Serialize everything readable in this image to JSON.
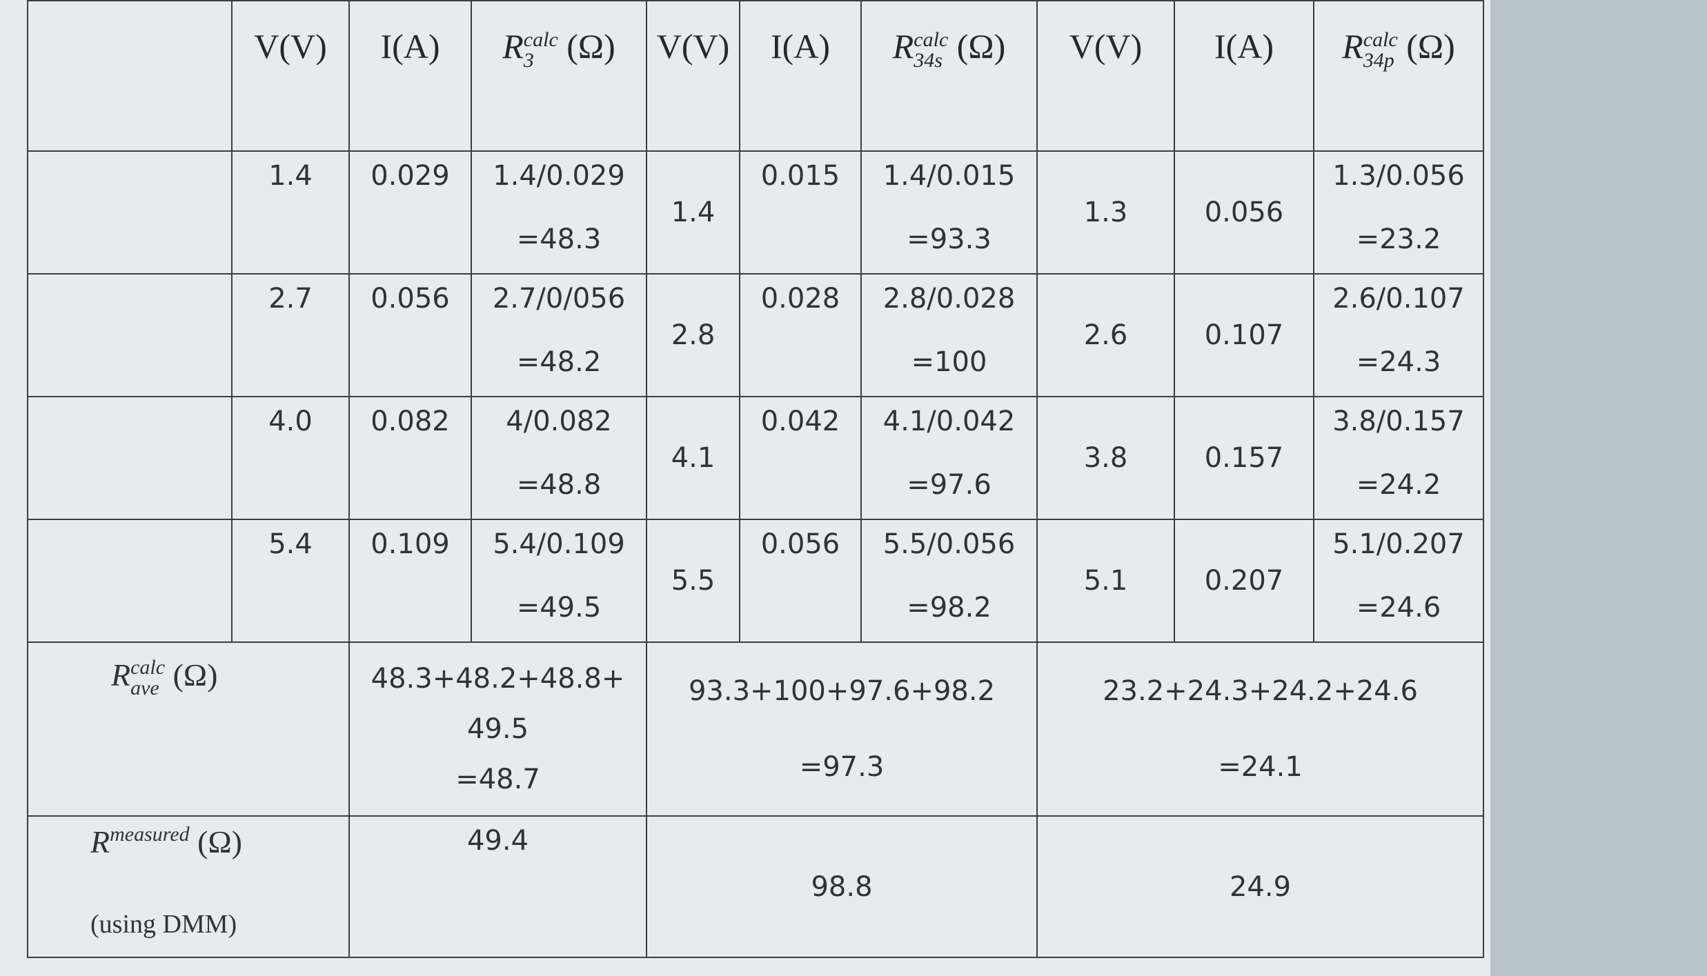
{
  "table": {
    "header": {
      "groups": [
        {
          "v": "V(V)",
          "i": "I(A)",
          "r": {
            "symbol": "R",
            "sup": "calc",
            "sub": "3",
            "unit": "(Ω)"
          }
        },
        {
          "v": "V(V)",
          "i": "I(A)",
          "r": {
            "symbol": "R",
            "sup": "calc",
            "sub": "34s",
            "unit": "(Ω)"
          }
        },
        {
          "v": "V(V)",
          "i": "I(A)",
          "r": {
            "symbol": "R",
            "sup": "calc",
            "sub": "34p",
            "unit": "(Ω)"
          }
        }
      ]
    },
    "rows": [
      {
        "groups": [
          {
            "v": "1.4",
            "i": "0.029",
            "calc": [
              "1.4/0.029",
              "=48.3"
            ]
          },
          {
            "v": "1.4",
            "i": "0.015",
            "calc": [
              "1.4/0.015",
              "=93.3"
            ]
          },
          {
            "v": "1.3",
            "i": "0.056",
            "calc": [
              "1.3/0.056",
              "=23.2"
            ]
          }
        ]
      },
      {
        "groups": [
          {
            "v": "2.7",
            "i": "0.056",
            "calc": [
              "2.7/0/056",
              "=48.2"
            ]
          },
          {
            "v": "2.8",
            "i": "0.028",
            "calc": [
              "2.8/0.028",
              "=100"
            ]
          },
          {
            "v": "2.6",
            "i": "0.107",
            "calc": [
              "2.6/0.107",
              "=24.3"
            ]
          }
        ]
      },
      {
        "groups": [
          {
            "v": "4.0",
            "i": "0.082",
            "calc": [
              "4/0.082",
              "=48.8"
            ]
          },
          {
            "v": "4.1",
            "i": "0.042",
            "calc": [
              "4.1/0.042",
              "=97.6"
            ]
          },
          {
            "v": "3.8",
            "i": "0.157",
            "calc": [
              "3.8/0.157",
              "=24.2"
            ]
          }
        ]
      },
      {
        "groups": [
          {
            "v": "5.4",
            "i": "0.109",
            "calc": [
              "5.4/0.109",
              "=49.5"
            ]
          },
          {
            "v": "5.5",
            "i": "0.056",
            "calc": [
              "5.5/0.056",
              "=98.2"
            ]
          },
          {
            "v": "5.1",
            "i": "0.207",
            "calc": [
              "5.1/0.207",
              "=24.6"
            ]
          }
        ]
      }
    ],
    "average": {
      "label": {
        "symbol": "R",
        "sup": "calc",
        "sub": "ave",
        "unit": "(Ω)"
      },
      "values": [
        [
          "48.3+48.2+48.8+",
          "49.5",
          "=48.7"
        ],
        [
          "93.3+100+97.6+98.2",
          "=97.3"
        ],
        [
          "23.2+24.3+24.2+24.6",
          "=24.1"
        ]
      ]
    },
    "measured": {
      "label": {
        "symbol": "R",
        "sup": "measured",
        "unit": "(Ω)"
      },
      "note": "(using DMM)",
      "values": [
        "49.4",
        "98.8",
        "24.9"
      ]
    }
  }
}
